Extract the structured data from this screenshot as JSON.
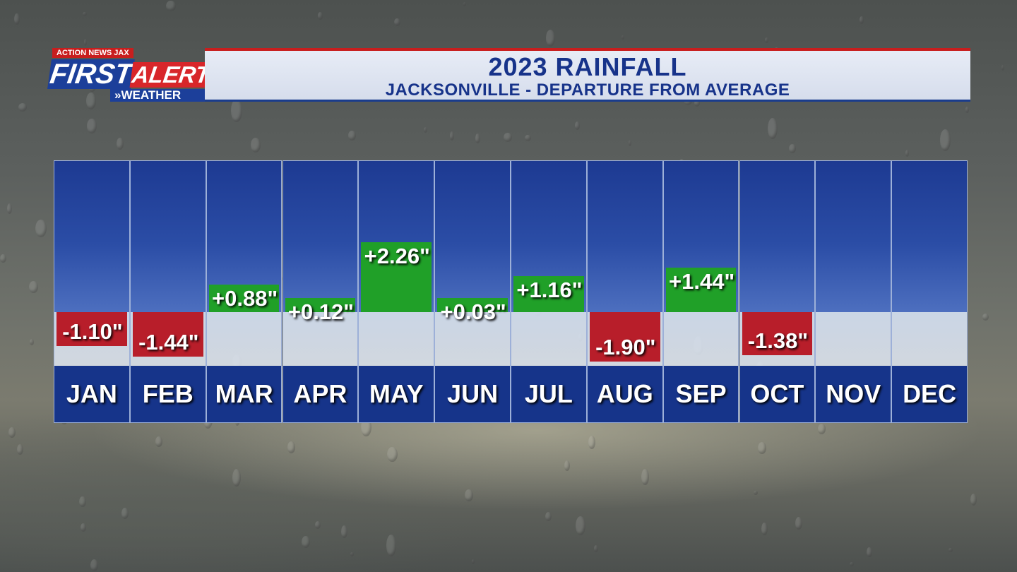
{
  "header": {
    "title": "2023 RAINFALL",
    "subtitle": "JACKSONVILLE - DEPARTURE FROM AVERAGE",
    "logo": {
      "top": "ACTION NEWS JAX",
      "first": "FIRST",
      "alert": "ALERT",
      "weather": "»WEATHER"
    }
  },
  "colors": {
    "positive": "#20a028",
    "negative": "#b81e2a",
    "column": "#1d3a92",
    "accent": "#c81e1e"
  },
  "chart_data": {
    "type": "bar",
    "title": "2023 RAINFALL",
    "subtitle": "JACKSONVILLE - DEPARTURE FROM AVERAGE",
    "categories": [
      "JAN",
      "FEB",
      "MAR",
      "APR",
      "MAY",
      "JUN",
      "JUL",
      "AUG",
      "SEP",
      "OCT",
      "NOV",
      "DEC"
    ],
    "values": [
      -1.1,
      -1.44,
      0.88,
      0.12,
      2.26,
      0.03,
      1.16,
      -1.9,
      1.44,
      -1.38,
      null,
      null
    ],
    "labels": [
      "-1.10\"",
      "-1.44\"",
      "+0.88\"",
      "+0.12\"",
      "+2.26\"",
      "+0.03\"",
      "+1.16\"",
      "-1.90\"",
      "+1.44\"",
      "-1.38\"",
      "",
      ""
    ],
    "units": "inches"
  }
}
